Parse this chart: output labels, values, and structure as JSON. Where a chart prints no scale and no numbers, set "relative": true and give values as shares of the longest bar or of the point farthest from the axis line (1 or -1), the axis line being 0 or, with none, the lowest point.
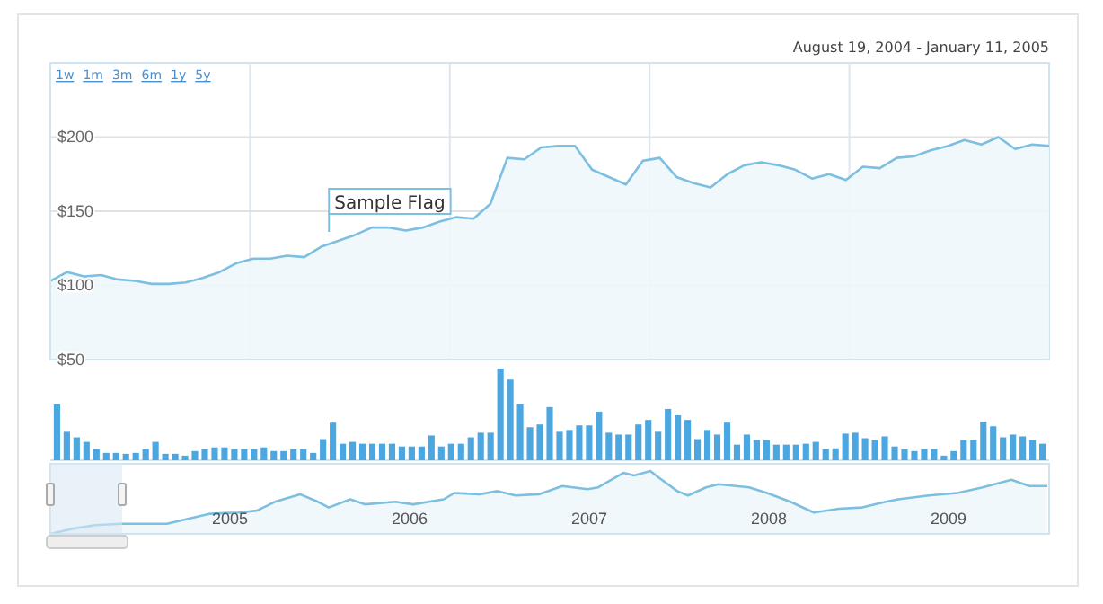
{
  "chart_data": [
    {
      "type": "area",
      "subtitle": "August 19, 2004 - January 11, 2005",
      "annotations": [
        "1w",
        "1m",
        "3m",
        "6m",
        "1y",
        "5y",
        "Sample Flag"
      ],
      "categories": [
        null,
        null,
        null,
        null,
        null,
        null,
        null,
        null,
        null,
        null,
        null,
        null,
        null,
        null,
        null,
        null,
        null,
        null,
        null,
        null,
        null,
        null,
        null,
        null,
        null,
        null,
        null,
        null,
        null,
        null,
        null,
        null,
        null,
        null,
        null,
        null,
        null,
        null,
        null,
        null,
        null,
        null,
        null,
        null,
        null,
        null,
        null,
        null,
        null,
        null,
        null,
        null,
        null,
        null,
        null,
        null,
        null,
        null,
        null,
        null
      ],
      "values": [
        103,
        109,
        106,
        107,
        104,
        103,
        101,
        101,
        102,
        105,
        109,
        115,
        118,
        118,
        120,
        119,
        126,
        130,
        134,
        139,
        139,
        137,
        139,
        143,
        146,
        145,
        155,
        186,
        185,
        193,
        194,
        194,
        178,
        173,
        168,
        184,
        186,
        173,
        169,
        166,
        175,
        181,
        183,
        181,
        178,
        172,
        175,
        171,
        180,
        179,
        186,
        187,
        191,
        194,
        198,
        195,
        200,
        192,
        195,
        194
      ],
      "color": "#7dbfe0",
      "ylim": [
        50,
        250
      ],
      "yticks": [
        {
          "value": 50,
          "label": "$50"
        },
        {
          "value": 100,
          "label": "$100"
        },
        {
          "value": 150,
          "label": "$150"
        },
        {
          "value": 200,
          "label": "$200"
        }
      ],
      "grid": true,
      "tick_labels": "y"
    },
    {
      "type": "bar",
      "relative": true,
      "color": "#4ca6e0",
      "categories": [
        null,
        null,
        null,
        null,
        null,
        null,
        null,
        null,
        null,
        null,
        null,
        null,
        null,
        null,
        null,
        null,
        null,
        null,
        null,
        null,
        null,
        null,
        null,
        null,
        null,
        null,
        null,
        null,
        null,
        null,
        null,
        null,
        null,
        null,
        null,
        null,
        null,
        null,
        null,
        null,
        null,
        null,
        null,
        null,
        null,
        null,
        null,
        null,
        null,
        null,
        null,
        null,
        null,
        null,
        null,
        null,
        null,
        null,
        null,
        null,
        null,
        null,
        null,
        null,
        null,
        null,
        null,
        null,
        null,
        null,
        null,
        null,
        null,
        null,
        null,
        null,
        null,
        null,
        null,
        null,
        null,
        null,
        null,
        null,
        null,
        null,
        null,
        null,
        null,
        null,
        null,
        null,
        null,
        null,
        null,
        null,
        null,
        null,
        null,
        null,
        null
      ],
      "values": [
        0.61,
        0.31,
        0.25,
        0.2,
        0.12,
        0.08,
        0.08,
        0.07,
        0.08,
        0.12,
        0.2,
        0.07,
        0.07,
        0.05,
        0.1,
        0.12,
        0.14,
        0.14,
        0.12,
        0.12,
        0.12,
        0.14,
        0.1,
        0.1,
        0.12,
        0.12,
        0.08,
        0.23,
        0.41,
        0.18,
        0.2,
        0.18,
        0.18,
        0.18,
        0.18,
        0.15,
        0.15,
        0.15,
        0.27,
        0.15,
        0.18,
        0.18,
        0.25,
        0.3,
        0.3,
        1,
        0.88,
        0.61,
        0.36,
        0.39,
        0.58,
        0.31,
        0.33,
        0.38,
        0.38,
        0.53,
        0.3,
        0.28,
        0.28,
        0.39,
        0.44,
        0.31,
        0.56,
        0.49,
        0.44,
        0.23,
        0.33,
        0.28,
        0.41,
        0.17,
        0.28,
        0.22,
        0.22,
        0.17,
        0.17,
        0.17,
        0.18,
        0.2,
        0.12,
        0.13,
        0.29,
        0.3,
        0.24,
        0.22,
        0.26,
        0.15,
        0.12,
        0.1,
        0.12,
        0.12,
        0.05,
        0.1,
        0.22,
        0.22,
        0.42,
        0.37,
        0.25,
        0.28,
        0.26,
        0.22,
        0.18
      ]
    },
    {
      "type": "area",
      "relative": true,
      "color": "#7dbfe0",
      "x": [
        2004.0,
        2004.12,
        2004.25,
        2004.39,
        2004.52,
        2004.65,
        2004.75,
        2004.89,
        2005.05,
        2005.15,
        2005.25,
        2005.39,
        2005.49,
        2005.55,
        2005.67,
        2005.75,
        2005.92,
        2006.02,
        2006.19,
        2006.25,
        2006.39,
        2006.49,
        2006.59,
        2006.72,
        2006.85,
        2006.99,
        2007.05,
        2007.19,
        2007.25,
        2007.34,
        2007.39,
        2007.49,
        2007.55,
        2007.65,
        2007.72,
        2007.89,
        2007.99,
        2008.12,
        2008.25,
        2008.39,
        2008.52,
        2008.65,
        2008.72,
        2008.89,
        2009.05,
        2009.19,
        2009.35,
        2009.45,
        2009.55
      ],
      "values": [
        0,
        0.08,
        0.14,
        0.16,
        0.16,
        0.16,
        0.23,
        0.32,
        0.34,
        0.37,
        0.51,
        0.63,
        0.51,
        0.42,
        0.55,
        0.47,
        0.51,
        0.47,
        0.55,
        0.65,
        0.63,
        0.68,
        0.61,
        0.63,
        0.76,
        0.71,
        0.74,
        0.97,
        0.93,
        1,
        0.89,
        0.68,
        0.61,
        0.74,
        0.79,
        0.74,
        0.65,
        0.51,
        0.34,
        0.4,
        0.42,
        0.51,
        0.55,
        0.61,
        0.65,
        0.74,
        0.86,
        0.76,
        0.76
      ],
      "xlim": [
        2004,
        2009.56
      ],
      "xticks": [
        2005,
        2006,
        2007,
        2008,
        2009
      ],
      "bands": [
        {
          "axis": "x",
          "from": 2004,
          "to": 2004.4,
          "color": "#dbe8f5"
        }
      ]
    }
  ]
}
